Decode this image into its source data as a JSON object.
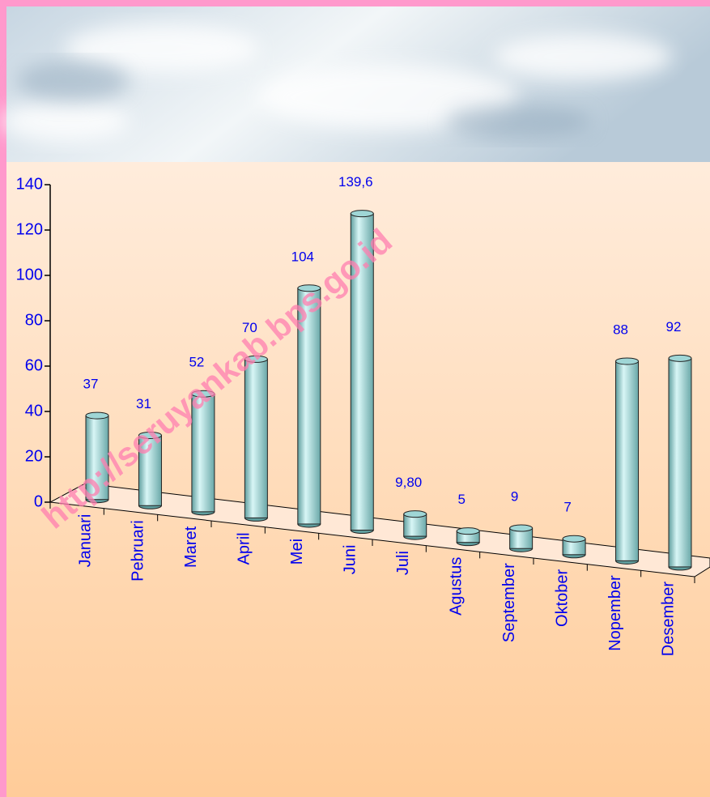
{
  "chart_data": {
    "type": "bar",
    "categories": [
      "Januari",
      "Pebruari",
      "Maret",
      "April",
      "Mei",
      "Juni",
      "Juli",
      "Agustus",
      "September",
      "Oktober",
      "Nopember",
      "Desember"
    ],
    "values": [
      37,
      31,
      52,
      70,
      104,
      139.6,
      9.8,
      5,
      9,
      7,
      88,
      92
    ],
    "value_labels": [
      "37",
      "31",
      "52",
      "70",
      "104",
      "139,6",
      "9,80",
      "5",
      "9",
      "7",
      "88",
      "92"
    ],
    "color": "#9fd6d6",
    "ylim": [
      0,
      140
    ],
    "yticks": [
      0,
      20,
      40,
      60,
      80,
      100,
      120,
      140
    ],
    "grid": false,
    "watermark": "http://seruyankab.bps.go.id"
  }
}
